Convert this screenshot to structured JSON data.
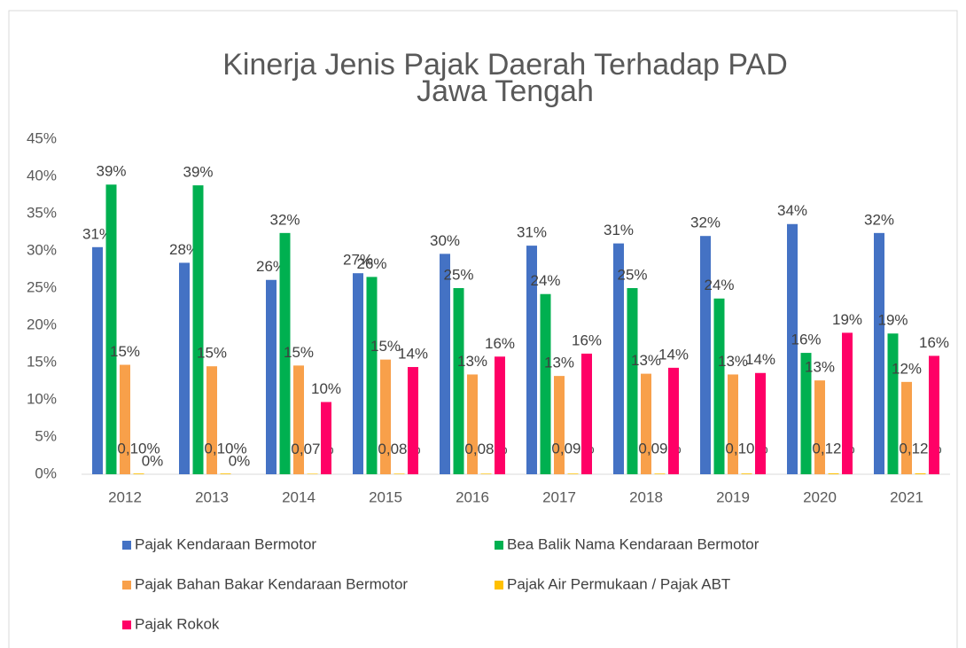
{
  "chart_data": {
    "type": "bar",
    "title": [
      "Kinerja Jenis Pajak Daerah Terhadap PAD",
      "Jawa Tengah"
    ],
    "categories": [
      "2012",
      "2013",
      "2014",
      "2015",
      "2016",
      "2017",
      "2018",
      "2019",
      "2020",
      "2021"
    ],
    "series": [
      {
        "name": "Pajak Kendaraan  Bermotor",
        "color": "#4472C4",
        "values": [
          30.5,
          28.4,
          26.1,
          27.0,
          29.6,
          30.7,
          31.0,
          32.0,
          33.6,
          32.4
        ],
        "value_labels": [
          "31%",
          "28%",
          "26%",
          "27%",
          "30%",
          "31%",
          "31%",
          "32%",
          "34%",
          "32%"
        ]
      },
      {
        "name": "Bea Balik Nama Kendaraan Bermotor",
        "color": "#00B050",
        "values": [
          38.9,
          38.8,
          32.4,
          26.5,
          25.0,
          24.2,
          25.0,
          23.6,
          16.3,
          18.9
        ],
        "value_labels": [
          "39%",
          "39%",
          "32%",
          "26%",
          "25%",
          "24%",
          "25%",
          "24%",
          "16%",
          "19%"
        ]
      },
      {
        "name": "Pajak Bahan Bakar Kendaraan Bermotor",
        "color": "#F8A04A",
        "values": [
          14.7,
          14.5,
          14.6,
          15.4,
          13.4,
          13.2,
          13.5,
          13.4,
          12.6,
          12.4
        ],
        "value_labels": [
          "15%",
          "15%",
          "15%",
          "15%",
          "13%",
          "13%",
          "13%",
          "13%",
          "13%",
          "12%"
        ]
      },
      {
        "name": "Pajak Air Permukaan /  Pajak  ABT",
        "color": "#FFC000",
        "values": [
          0.1,
          0.1,
          0.07,
          0.08,
          0.08,
          0.09,
          0.09,
          0.1,
          0.12,
          0.12
        ],
        "value_labels": [
          "0,10%",
          "0,10%",
          "0,07%",
          "0,08%",
          "0,08%",
          "0,09%",
          "0,09%",
          "0,10%",
          "0,12%",
          "0,12%"
        ]
      },
      {
        "name": "Pajak Rokok",
        "color": "#FF0066",
        "values": [
          0,
          0,
          9.7,
          14.4,
          15.8,
          16.2,
          14.3,
          13.6,
          19.0,
          15.9
        ],
        "value_labels": [
          "0%",
          "0%",
          "10%",
          "14%",
          "16%",
          "16%",
          "14%",
          "14%",
          "19%",
          "16%"
        ]
      }
    ],
    "ylim": [
      0,
      45
    ],
    "yticks": [
      {
        "value": 0,
        "label": "0%"
      },
      {
        "value": 5,
        "label": "5%"
      },
      {
        "value": 10,
        "label": "10%"
      },
      {
        "value": 15,
        "label": "15%"
      },
      {
        "value": 20,
        "label": "20%"
      },
      {
        "value": 25,
        "label": "25%"
      },
      {
        "value": 30,
        "label": "30%"
      },
      {
        "value": 35,
        "label": "35%"
      },
      {
        "value": 40,
        "label": "40%"
      },
      {
        "value": 45,
        "label": "45%"
      }
    ],
    "grid": false,
    "legend": "bottom"
  }
}
